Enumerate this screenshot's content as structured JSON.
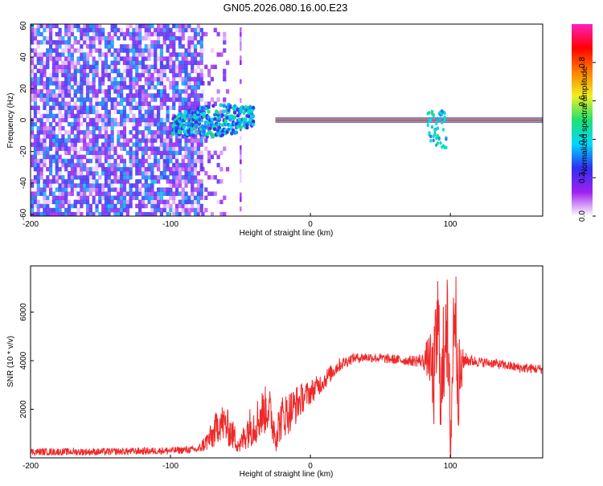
{
  "title": "GN05.2026.080.16.00.E23",
  "chart_data": [
    {
      "type": "heatmap",
      "xlabel": "Height of straight line (km)",
      "ylabel": "Frequency (Hz)",
      "xlim": [
        -200,
        166
      ],
      "ylim": [
        -61,
        61
      ],
      "xticks": [
        -200,
        -100,
        0,
        100
      ],
      "yticks": [
        -60,
        -40,
        -20,
        0,
        20,
        40,
        60
      ],
      "colorbar": {
        "label": "Normalized spectral amplitude",
        "range": [
          0,
          1
        ],
        "ticks": [
          "0.0",
          "0.2",
          "0.4",
          "0.6",
          "0.8"
        ],
        "colors": [
          "#ffffff",
          "#a020f0",
          "#2f2ff0",
          "#00d8ff",
          "#20e070",
          "#f0f020",
          "#ff8000",
          "#ff0000",
          "#ff20c0"
        ]
      },
      "series": [
        {
          "segment": "noise",
          "x_range": [
            -200,
            -78
          ],
          "frequency_range": [
            -61,
            61
          ],
          "amplitude_range": [
            0.02,
            0.35
          ]
        },
        {
          "segment": "sparse-noise",
          "x_range": [
            -78,
            -60
          ],
          "frequency_range": [
            -61,
            61
          ],
          "amplitude_range": [
            0.02,
            0.2
          ]
        },
        {
          "segment": "line-x-50",
          "x": -50,
          "frequency_range": [
            -61,
            61
          ],
          "amplitude_range": [
            0.02,
            0.15
          ]
        },
        {
          "segment": "transition",
          "x_range": [
            -98,
            -40
          ],
          "frequency_range": [
            -12,
            10
          ],
          "amplitude_range": [
            0.2,
            0.5
          ]
        },
        {
          "segment": "carrier",
          "x_range": [
            -25,
            166
          ],
          "frequency": 0,
          "amplitude": 0.95
        },
        {
          "segment": "feature-near-90",
          "x_range": [
            84,
            98
          ],
          "frequency_range": [
            -18,
            6
          ],
          "amplitude_range": [
            0.3,
            0.5
          ]
        }
      ]
    },
    {
      "type": "line",
      "xlabel": "Height of straight line (km)",
      "ylabel": "SNR (10 * v/v)",
      "xlim": [
        -200,
        166
      ],
      "ylim": [
        0,
        7900
      ],
      "xticks": [
        -200,
        -100,
        0,
        100
      ],
      "yticks": [
        2000,
        4000,
        6000
      ],
      "line_color": "#f02828",
      "series": [
        {
          "x": [
            -200,
            -150,
            -100,
            -80,
            -70,
            -65,
            -60,
            -55,
            -50,
            -45,
            -40,
            -35,
            -30,
            -25,
            -20,
            -15,
            -10,
            -5,
            0,
            10,
            20,
            30,
            40,
            50,
            60,
            70,
            80,
            85,
            88,
            91,
            94,
            97,
            100,
            103,
            106,
            110,
            120,
            130,
            140,
            150,
            166
          ],
          "y": [
            250,
            250,
            300,
            350,
            900,
            1500,
            1300,
            900,
            500,
            1200,
            1400,
            1800,
            2100,
            1000,
            1700,
            1900,
            2200,
            2500,
            2700,
            3200,
            3800,
            4100,
            4150,
            4100,
            4050,
            4000,
            4000,
            4150,
            3000,
            5500,
            2500,
            6500,
            300,
            6800,
            3000,
            4050,
            3950,
            3900,
            3800,
            3700,
            3650
          ],
          "amplitude": [
            150,
            150,
            150,
            150,
            600,
            800,
            800,
            600,
            400,
            800,
            900,
            1000,
            1000,
            800,
            900,
            900,
            800,
            600,
            500,
            400,
            300,
            200,
            200,
            200,
            200,
            200,
            300,
            1000,
            2000,
            2500,
            2500,
            2500,
            3000,
            2500,
            2000,
            300,
            200,
            200,
            200,
            200,
            200
          ]
        }
      ]
    }
  ]
}
